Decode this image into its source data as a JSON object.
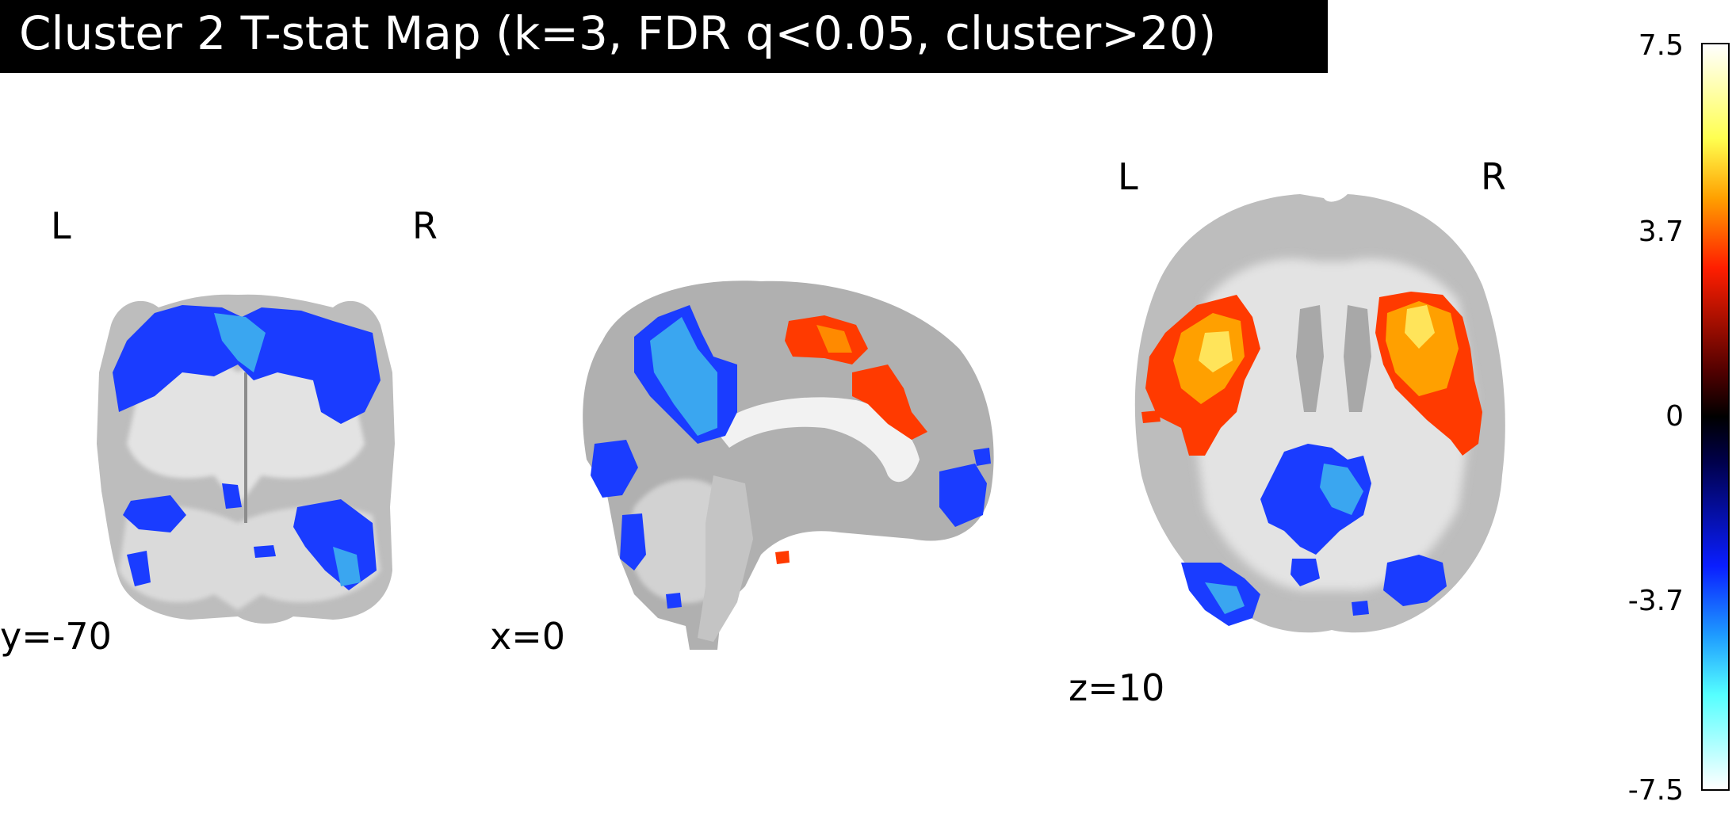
{
  "title": "Cluster 2 T-stat Map (k=3, FDR q<0.05, cluster>20)",
  "views": {
    "coronal": {
      "orient_left": "L",
      "orient_right": "R",
      "coord": "y=-70"
    },
    "sagittal": {
      "coord": "x=0"
    },
    "axial": {
      "orient_left": "L",
      "orient_right": "R",
      "coord": "z=10"
    }
  },
  "colorbar": {
    "ticks": [
      "7.5",
      "3.7",
      "0",
      "-3.7",
      "-7.5"
    ],
    "tick_values": [
      7.5,
      3.7,
      0,
      -3.7,
      -7.5
    ],
    "vmin": -7.5,
    "vmax": 7.5,
    "colormap": [
      "#ffffff",
      "#55ffff",
      "#1e9bff",
      "#0a1eff",
      "#00004a",
      "#000000",
      "#500000",
      "#ff1e00",
      "#ffa000",
      "#ffff50",
      "#ffffff"
    ],
    "colormap_stops": [
      -7.5,
      -5.6,
      -4.4,
      -3.0,
      -0.9,
      0,
      0.9,
      3.0,
      4.4,
      5.6,
      7.5
    ]
  },
  "colors": {
    "brain_gray": "#bdbdbd",
    "brain_white": "#e6e6e6",
    "brain_dark": "#8c8c8c",
    "negative": "#1a3cff",
    "negative_light": "#3aa6f0",
    "positive": "#ff3a00",
    "positive_light": "#ffd21e"
  }
}
